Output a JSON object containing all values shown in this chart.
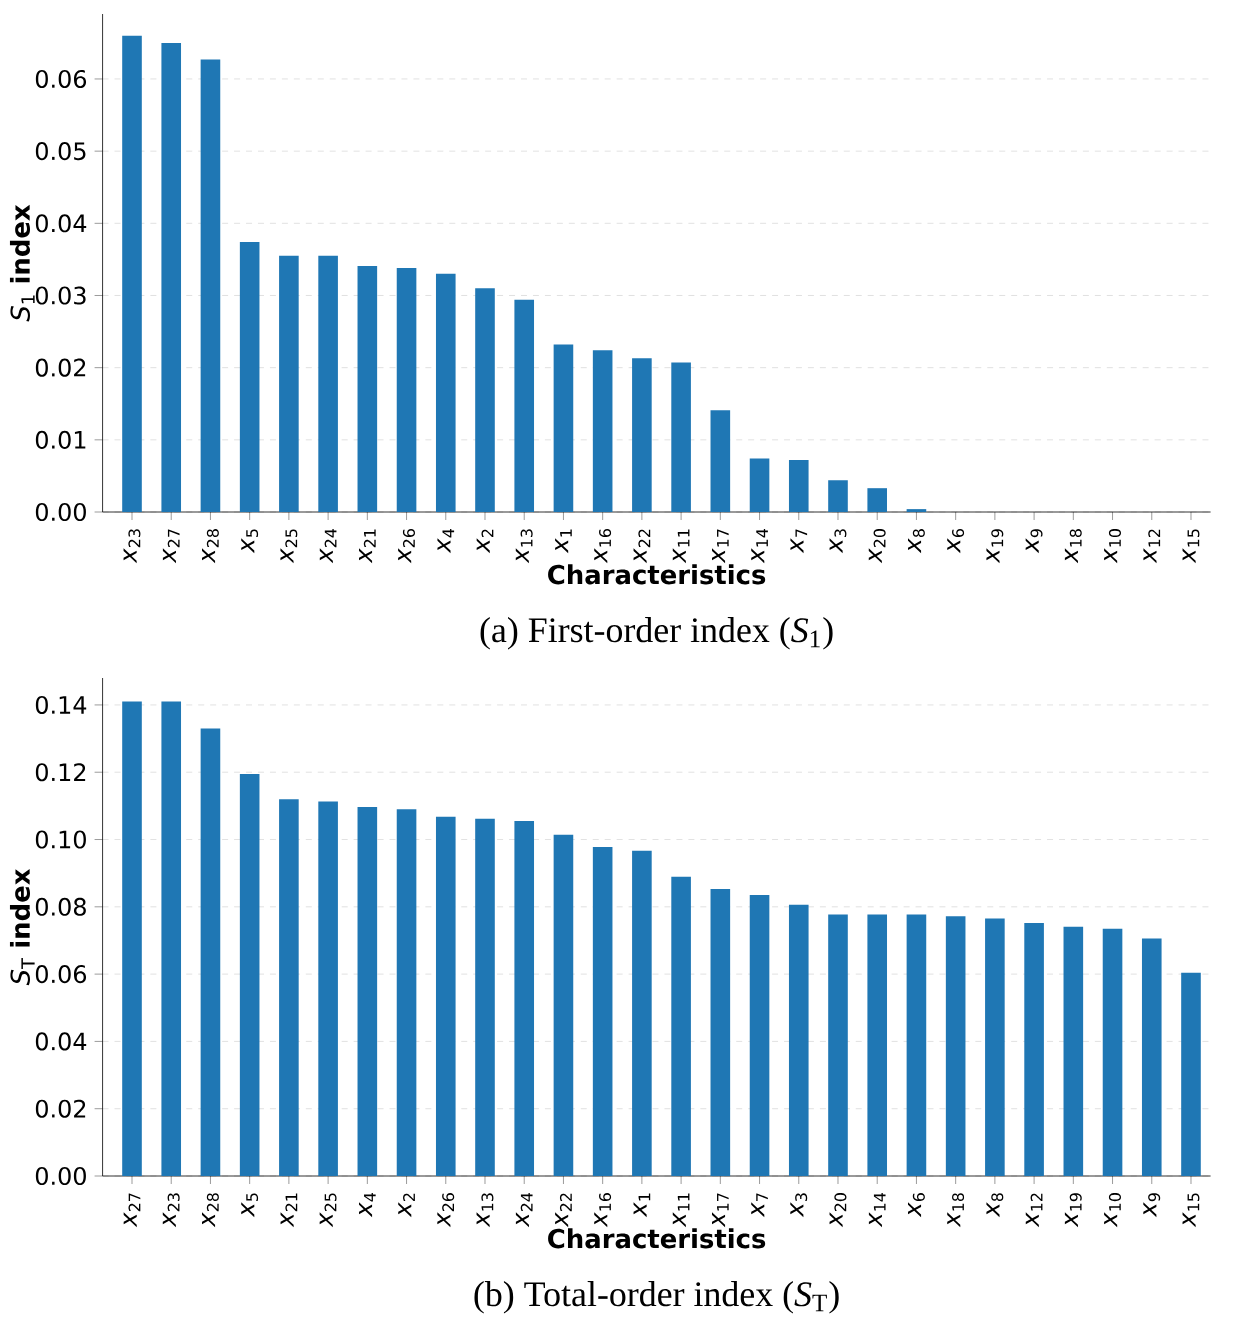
{
  "chart_data": [
    {
      "type": "bar",
      "title": "(a) First-order index (*S*$_{1}$)",
      "xlabel": "Characteristics",
      "ylabel": "*S*$_{1}$ **index**",
      "color": "#1f77b4",
      "grid": "y",
      "categories": [
        "*x*$_{23}$",
        "*x*$_{27}$",
        "*x*$_{28}$",
        "*x*$_{5}$",
        "*x*$_{25}$",
        "*x*$_{24}$",
        "*x*$_{21}$",
        "*x*$_{26}$",
        "*x*$_{4}$",
        "*x*$_{2}$",
        "*x*$_{13}$",
        "*x*$_{1}$",
        "*x*$_{16}$",
        "*x*$_{22}$",
        "*x*$_{11}$",
        "*x*$_{17}$",
        "*x*$_{14}$",
        "*x*$_{7}$",
        "*x*$_{3}$",
        "*x*$_{20}$",
        "*x*$_{8}$",
        "*x*$_{6}$",
        "*x*$_{19}$",
        "*x*$_{9}$",
        "*x*$_{18}$",
        "*x*$_{10}$",
        "*x*$_{12}$",
        "*x*$_{15}$"
      ],
      "values": [
        0.066,
        0.065,
        0.0627,
        0.0374,
        0.0355,
        0.0355,
        0.0341,
        0.0338,
        0.033,
        0.031,
        0.0294,
        0.0232,
        0.0224,
        0.0213,
        0.0207,
        0.0141,
        0.0074,
        0.0072,
        0.0044,
        0.0033,
        0.0004,
        0,
        0,
        0,
        0,
        0,
        0,
        0
      ],
      "ylim": [
        0,
        0.069
      ],
      "yticks": [
        {
          "value": 0,
          "label": "0.00"
        },
        {
          "value": 0.01,
          "label": "0.01"
        },
        {
          "value": 0.02,
          "label": "0.02"
        },
        {
          "value": 0.03,
          "label": "0.03"
        },
        {
          "value": 0.04,
          "label": "0.04"
        },
        {
          "value": 0.05,
          "label": "0.05"
        },
        {
          "value": 0.06,
          "label": "0.06"
        }
      ]
    },
    {
      "type": "bar",
      "title": "(b) Total-order index (*S*$_{T}$)",
      "xlabel": "Characteristics",
      "ylabel": "*S*$_{T}$ **index**",
      "color": "#1f77b4",
      "grid": "y",
      "categories": [
        "*x*$_{27}$",
        "*x*$_{23}$",
        "*x*$_{28}$",
        "*x*$_{5}$",
        "*x*$_{21}$",
        "*x*$_{25}$",
        "*x*$_{4}$",
        "*x*$_{2}$",
        "*x*$_{26}$",
        "*x*$_{13}$",
        "*x*$_{24}$",
        "*x*$_{22}$",
        "*x*$_{16}$",
        "*x*$_{1}$",
        "*x*$_{11}$",
        "*x*$_{17}$",
        "*x*$_{7}$",
        "*x*$_{3}$",
        "*x*$_{20}$",
        "*x*$_{14}$",
        "*x*$_{6}$",
        "*x*$_{18}$",
        "*x*$_{8}$",
        "*x*$_{12}$",
        "*x*$_{19}$",
        "*x*$_{10}$",
        "*x*$_{9}$",
        "*x*$_{15}$"
      ],
      "values": [
        0.141,
        0.141,
        0.133,
        0.1195,
        0.112,
        0.1113,
        0.1097,
        0.109,
        0.1068,
        0.1062,
        0.1055,
        0.1014,
        0.0978,
        0.0967,
        0.0889,
        0.0853,
        0.0835,
        0.0806,
        0.0777,
        0.0777,
        0.0777,
        0.0772,
        0.0765,
        0.0752,
        0.0741,
        0.0735,
        0.0706,
        0.0604
      ],
      "ylim": [
        0,
        0.148
      ],
      "yticks": [
        {
          "value": 0,
          "label": "0.00"
        },
        {
          "value": 0.02,
          "label": "0.02"
        },
        {
          "value": 0.04,
          "label": "0.04"
        },
        {
          "value": 0.06,
          "label": "0.06"
        },
        {
          "value": 0.08,
          "label": "0.08"
        },
        {
          "value": 0.1,
          "label": "0.10"
        },
        {
          "value": 0.12,
          "label": "0.12"
        },
        {
          "value": 0.14,
          "label": "0.14"
        }
      ]
    }
  ]
}
